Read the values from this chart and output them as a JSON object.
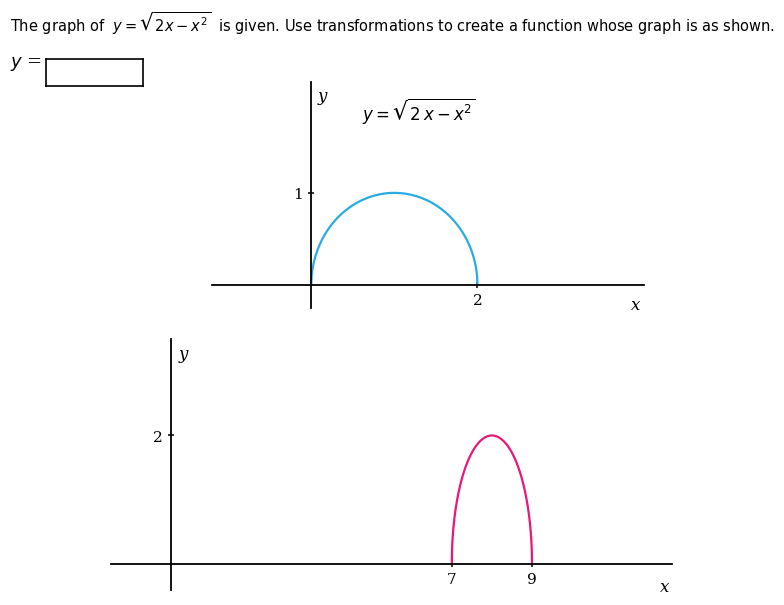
{
  "title_text": "The graph of  $y = \\sqrt{2x - x^2}$  is given. Use transformations to create a function whose graph is as shown.",
  "title_color": "#000000",
  "background_color": "#ffffff",
  "graph1": {
    "x_start": 0,
    "x_end": 2,
    "color": "#29ABE2",
    "linewidth": 1.6,
    "label": "$y = \\sqrt{2\\,x - x^2}$",
    "x_tick": 2,
    "y_tick": 1,
    "x_label": "x",
    "y_label": "y",
    "xlim": [
      -1.2,
      4.0
    ],
    "ylim": [
      -0.25,
      2.2
    ]
  },
  "graph2": {
    "x_start": 7,
    "x_end": 9,
    "color": "#E8177A",
    "linewidth": 1.6,
    "x_tick1": 7,
    "x_tick2": 9,
    "y_tick": 2,
    "x_label": "x",
    "y_label": "y",
    "xlim": [
      -1.5,
      12.5
    ],
    "ylim": [
      -0.4,
      3.5
    ]
  },
  "answer_box": {
    "y_label": "$y$ =",
    "fontsize": 13
  }
}
